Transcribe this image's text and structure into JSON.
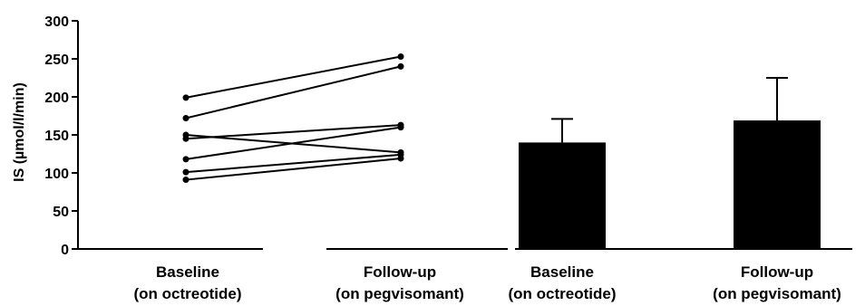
{
  "chart_data": {
    "type": "line+bar",
    "ylabel": "IS (µmol/l/min)",
    "ylim": [
      0,
      300
    ],
    "yticks": [
      "0",
      "50",
      "100",
      "150",
      "200",
      "250",
      "300"
    ],
    "categories": [
      {
        "line1": "Baseline",
        "line2": "(on octreotide)"
      },
      {
        "line1": "Follow-up",
        "line2": "(on pegvisomant)"
      },
      {
        "line1": "Baseline",
        "line2": "(on octreotide)"
      },
      {
        "line1": "Follow-up",
        "line2": "(on pegvisomant)"
      }
    ],
    "paired_individuals": [
      {
        "baseline": 199,
        "followup": 253
      },
      {
        "baseline": 172,
        "followup": 240
      },
      {
        "baseline": 150,
        "followup": 127
      },
      {
        "baseline": 145,
        "followup": 163
      },
      {
        "baseline": 118,
        "followup": 160
      },
      {
        "baseline": 101,
        "followup": 124
      },
      {
        "baseline": 91,
        "followup": 119
      }
    ],
    "bars": [
      {
        "value": 140,
        "error": 31
      },
      {
        "value": 169,
        "error": 56
      }
    ],
    "colors": {
      "bar": "#000000",
      "line": "#000000"
    }
  }
}
